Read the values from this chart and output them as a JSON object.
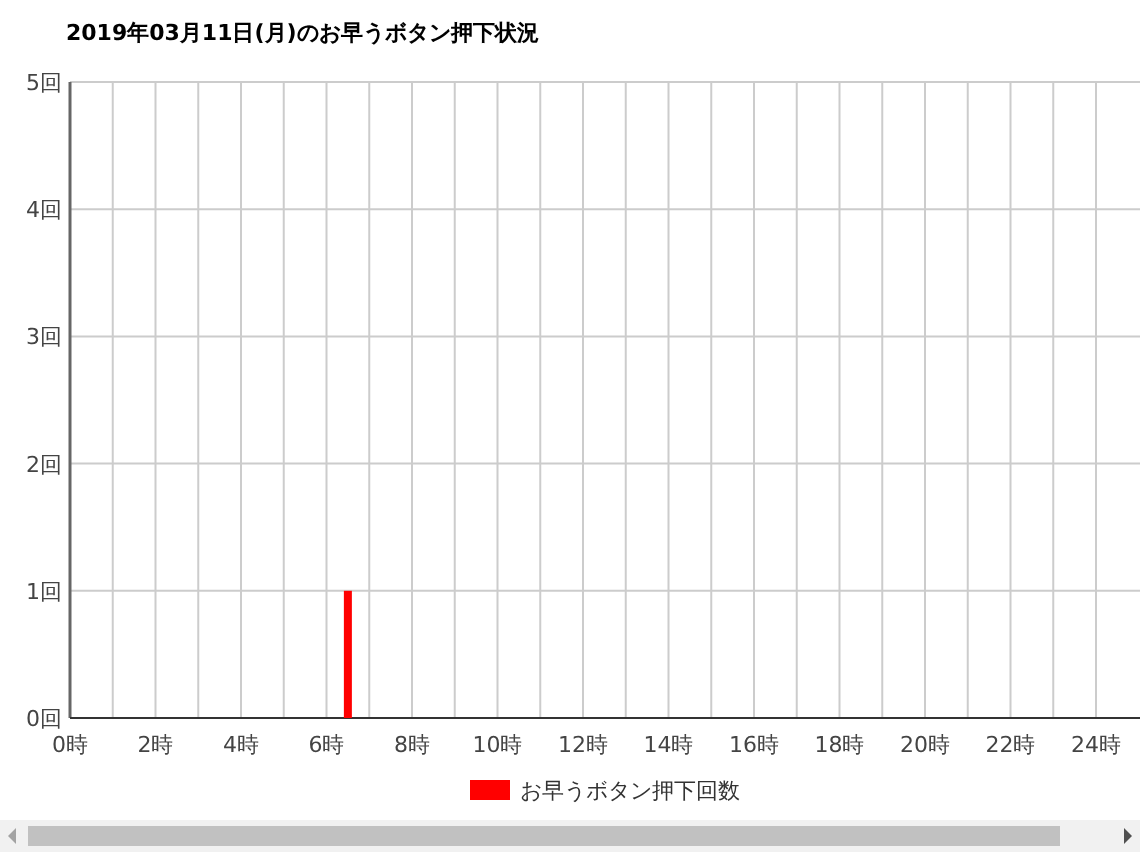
{
  "chart_data": {
    "type": "bar",
    "title": "2019年03月11日(月)のお早うボタン押下状況",
    "x": [
      6.5
    ],
    "series": [
      {
        "name": "お早うボタン押下回数",
        "color": "#ff0000",
        "values": [
          1
        ]
      }
    ],
    "xlim": [
      0,
      24
    ],
    "xticks": [
      {
        "value": 0,
        "label": "0時"
      },
      {
        "value": 1,
        "label": null
      },
      {
        "value": 2,
        "label": "2時"
      },
      {
        "value": 3,
        "label": null
      },
      {
        "value": 4,
        "label": "4時"
      },
      {
        "value": 5,
        "label": null
      },
      {
        "value": 6,
        "label": "6時"
      },
      {
        "value": 7,
        "label": null
      },
      {
        "value": 8,
        "label": "8時"
      },
      {
        "value": 9,
        "label": null
      },
      {
        "value": 10,
        "label": "10時"
      },
      {
        "value": 11,
        "label": null
      },
      {
        "value": 12,
        "label": "12時"
      },
      {
        "value": 13,
        "label": null
      },
      {
        "value": 14,
        "label": "14時"
      },
      {
        "value": 15,
        "label": null
      },
      {
        "value": 16,
        "label": "16時"
      },
      {
        "value": 17,
        "label": null
      },
      {
        "value": 18,
        "label": "18時"
      },
      {
        "value": 19,
        "label": null
      },
      {
        "value": 20,
        "label": "20時"
      },
      {
        "value": 21,
        "label": null
      },
      {
        "value": 22,
        "label": "22時"
      },
      {
        "value": 23,
        "label": null
      },
      {
        "value": 24,
        "label": "24時"
      }
    ],
    "ylim": [
      0,
      5
    ],
    "yticks": [
      {
        "value": 0,
        "label": "0回"
      },
      {
        "value": 1,
        "label": "1回"
      },
      {
        "value": 2,
        "label": "2回"
      },
      {
        "value": 3,
        "label": "3回"
      },
      {
        "value": 4,
        "label": "4回"
      },
      {
        "value": 5,
        "label": "5回"
      }
    ],
    "grid": true,
    "legend": "bottom"
  }
}
